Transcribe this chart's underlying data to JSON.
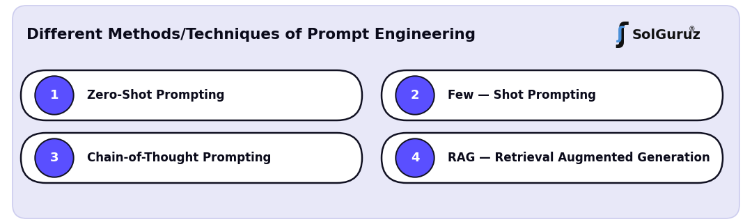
{
  "title": "Different Methods/Techniques of Prompt Engineering",
  "bg_color": "#e8e8f8",
  "card_bg": "#eeeef8",
  "box_bg": "#FFFFFF",
  "box_border": "#111122",
  "circle_color": "#5a4fff",
  "circle_border": "#111122",
  "circle_text_color": "#FFFFFF",
  "text_color": "#0a0a1a",
  "title_fontsize": 15.5,
  "item_fontsize": 12,
  "logo_text_color": "#111111",
  "logo_s_color1": "#4a90d9",
  "logo_s_color2": "#111111",
  "items": [
    {
      "num": "1",
      "label": "Zero-Shot Prompting",
      "col": 0,
      "row": 0
    },
    {
      "num": "2",
      "label": "Few — Shot Prompting",
      "col": 1,
      "row": 0
    },
    {
      "num": "3",
      "label": "Chain-of-Thought Prompting",
      "col": 0,
      "row": 1
    },
    {
      "num": "4",
      "label": "RAG — Retrieval Augmented Generation",
      "col": 1,
      "row": 1
    }
  ]
}
